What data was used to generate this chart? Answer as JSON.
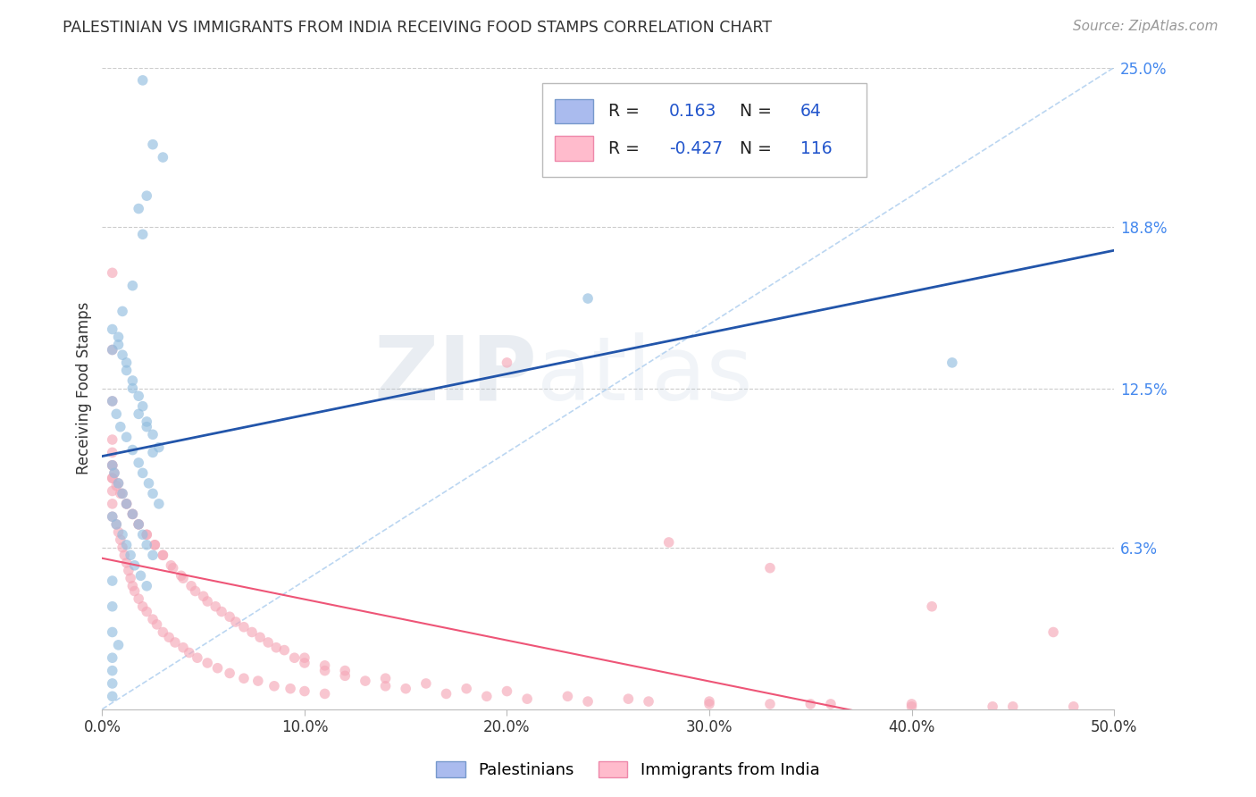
{
  "title": "PALESTINIAN VS IMMIGRANTS FROM INDIA RECEIVING FOOD STAMPS CORRELATION CHART",
  "source": "Source: ZipAtlas.com",
  "ylabel": "Receiving Food Stamps",
  "x_tick_labels": [
    "0.0%",
    "10.0%",
    "20.0%",
    "30.0%",
    "40.0%",
    "50.0%"
  ],
  "x_ticks": [
    0.0,
    0.1,
    0.2,
    0.3,
    0.4,
    0.5
  ],
  "y_tick_labels_right": [
    "25.0%",
    "18.8%",
    "12.5%",
    "6.3%"
  ],
  "y_ticks_right": [
    0.25,
    0.188,
    0.125,
    0.063
  ],
  "xlim": [
    0.0,
    0.5
  ],
  "ylim": [
    0.0,
    0.25
  ],
  "blue_R": "0.163",
  "blue_N": "64",
  "pink_R": "-0.427",
  "pink_N": "116",
  "blue_scatter_color": "#92BDDF",
  "pink_scatter_color": "#F5A8B8",
  "trend_blue_color": "#2255AA",
  "trend_pink_color": "#EE5577",
  "dashed_line_color": "#AACCEE",
  "background_color": "#FFFFFF",
  "grid_color": "#CCCCCC",
  "watermark_zip_color": "#AABBCC",
  "watermark_atlas_color": "#BBCCDD",
  "legend_label_blue": "Palestinians",
  "legend_label_pink": "Immigrants from India",
  "blue_R_color": "#2255CC",
  "pink_R_color": "#EE4488",
  "blue_scatter_x": [
    0.02,
    0.025,
    0.03,
    0.022,
    0.018,
    0.02,
    0.015,
    0.01,
    0.008,
    0.005,
    0.012,
    0.015,
    0.018,
    0.022,
    0.025,
    0.005,
    0.008,
    0.01,
    0.012,
    0.015,
    0.018,
    0.02,
    0.022,
    0.025,
    0.028,
    0.005,
    0.007,
    0.009,
    0.012,
    0.015,
    0.018,
    0.02,
    0.023,
    0.025,
    0.028,
    0.005,
    0.006,
    0.008,
    0.01,
    0.012,
    0.015,
    0.018,
    0.02,
    0.022,
    0.025,
    0.005,
    0.007,
    0.01,
    0.012,
    0.014,
    0.016,
    0.019,
    0.022,
    0.005,
    0.005,
    0.005,
    0.008,
    0.005,
    0.005,
    0.005,
    0.005,
    0.24,
    0.42
  ],
  "blue_scatter_y": [
    0.245,
    0.22,
    0.215,
    0.2,
    0.195,
    0.185,
    0.165,
    0.155,
    0.145,
    0.14,
    0.135,
    0.125,
    0.115,
    0.11,
    0.1,
    0.148,
    0.142,
    0.138,
    0.132,
    0.128,
    0.122,
    0.118,
    0.112,
    0.107,
    0.102,
    0.12,
    0.115,
    0.11,
    0.106,
    0.101,
    0.096,
    0.092,
    0.088,
    0.084,
    0.08,
    0.095,
    0.092,
    0.088,
    0.084,
    0.08,
    0.076,
    0.072,
    0.068,
    0.064,
    0.06,
    0.075,
    0.072,
    0.068,
    0.064,
    0.06,
    0.056,
    0.052,
    0.048,
    0.05,
    0.04,
    0.03,
    0.025,
    0.02,
    0.015,
    0.01,
    0.005,
    0.16,
    0.135
  ],
  "pink_scatter_x": [
    0.005,
    0.005,
    0.005,
    0.005,
    0.005,
    0.005,
    0.005,
    0.005,
    0.005,
    0.005,
    0.007,
    0.008,
    0.009,
    0.01,
    0.011,
    0.012,
    0.013,
    0.014,
    0.015,
    0.016,
    0.018,
    0.02,
    0.022,
    0.025,
    0.027,
    0.03,
    0.033,
    0.036,
    0.04,
    0.043,
    0.047,
    0.052,
    0.057,
    0.063,
    0.07,
    0.077,
    0.085,
    0.093,
    0.1,
    0.11,
    0.005,
    0.006,
    0.008,
    0.01,
    0.012,
    0.015,
    0.018,
    0.022,
    0.026,
    0.03,
    0.034,
    0.039,
    0.044,
    0.05,
    0.056,
    0.063,
    0.07,
    0.078,
    0.086,
    0.095,
    0.1,
    0.11,
    0.12,
    0.13,
    0.14,
    0.15,
    0.17,
    0.19,
    0.21,
    0.24,
    0.27,
    0.3,
    0.33,
    0.36,
    0.4,
    0.44,
    0.48,
    0.005,
    0.007,
    0.009,
    0.012,
    0.015,
    0.018,
    0.022,
    0.026,
    0.03,
    0.035,
    0.04,
    0.046,
    0.052,
    0.059,
    0.066,
    0.074,
    0.082,
    0.09,
    0.1,
    0.11,
    0.12,
    0.14,
    0.16,
    0.18,
    0.2,
    0.23,
    0.26,
    0.3,
    0.35,
    0.4,
    0.45,
    0.2,
    0.28,
    0.33,
    0.41,
    0.47
  ],
  "pink_scatter_y": [
    0.17,
    0.14,
    0.12,
    0.105,
    0.1,
    0.095,
    0.09,
    0.085,
    0.08,
    0.075,
    0.072,
    0.069,
    0.066,
    0.063,
    0.06,
    0.057,
    0.054,
    0.051,
    0.048,
    0.046,
    0.043,
    0.04,
    0.038,
    0.035,
    0.033,
    0.03,
    0.028,
    0.026,
    0.024,
    0.022,
    0.02,
    0.018,
    0.016,
    0.014,
    0.012,
    0.011,
    0.009,
    0.008,
    0.007,
    0.006,
    0.095,
    0.092,
    0.088,
    0.084,
    0.08,
    0.076,
    0.072,
    0.068,
    0.064,
    0.06,
    0.056,
    0.052,
    0.048,
    0.044,
    0.04,
    0.036,
    0.032,
    0.028,
    0.024,
    0.02,
    0.018,
    0.015,
    0.013,
    0.011,
    0.009,
    0.008,
    0.006,
    0.005,
    0.004,
    0.003,
    0.003,
    0.002,
    0.002,
    0.002,
    0.001,
    0.001,
    0.001,
    0.09,
    0.087,
    0.084,
    0.08,
    0.076,
    0.072,
    0.068,
    0.064,
    0.06,
    0.055,
    0.051,
    0.046,
    0.042,
    0.038,
    0.034,
    0.03,
    0.026,
    0.023,
    0.02,
    0.017,
    0.015,
    0.012,
    0.01,
    0.008,
    0.007,
    0.005,
    0.004,
    0.003,
    0.002,
    0.002,
    0.001,
    0.135,
    0.065,
    0.055,
    0.04,
    0.03
  ]
}
